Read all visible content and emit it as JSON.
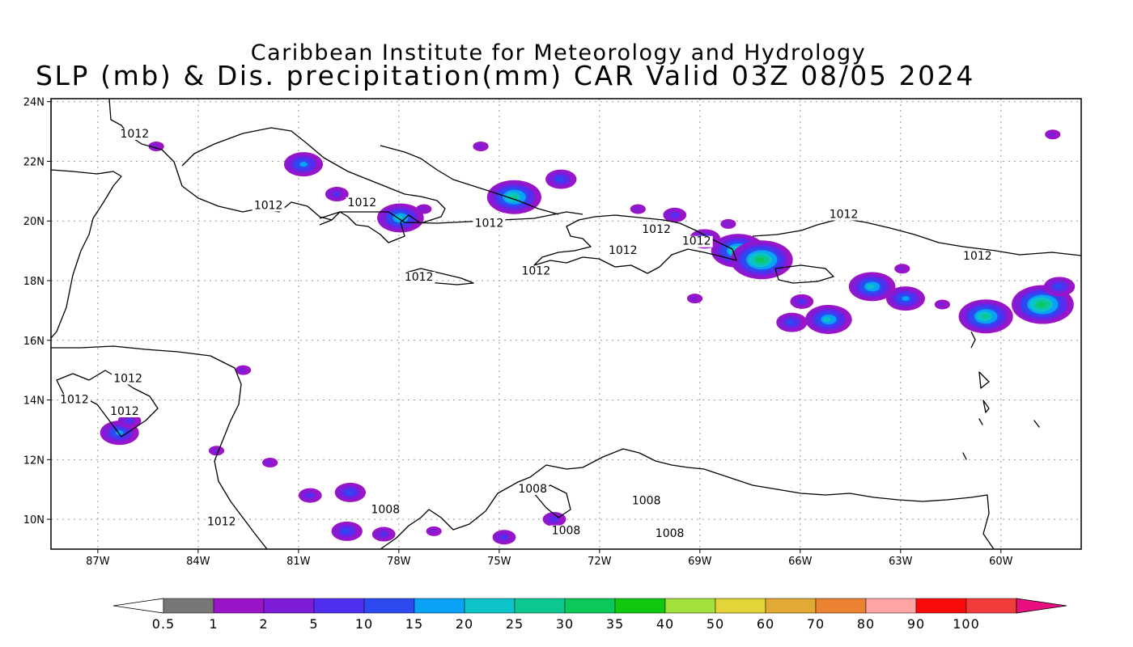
{
  "title": {
    "line1": "Caribbean Institute for Meteorology and Hydrology",
    "line2": "SLP (mb) & Dis. precipitation(mm) CAR Valid 03Z 08/05 2024"
  },
  "axes": {
    "lon_labels": [
      "87W",
      "84W",
      "81W",
      "78W",
      "75W",
      "72W",
      "69W",
      "66W",
      "63W",
      "60W"
    ],
    "lat_labels": [
      "24N",
      "22N",
      "20N",
      "18N",
      "16N",
      "14N",
      "12N",
      "10N"
    ],
    "lon_values": [
      -87,
      -84,
      -81,
      -78,
      -75,
      -72,
      -69,
      -66,
      -63,
      -60
    ],
    "lat_values": [
      24,
      22,
      20,
      18,
      16,
      14,
      12,
      10
    ],
    "lon_range": [
      -88.4,
      -57.6
    ],
    "lat_range": [
      9,
      24.1
    ],
    "grid": true
  },
  "isobars": [
    {
      "label": "1012",
      "lon": -85.9,
      "lat": 22.8
    },
    {
      "label": "1012",
      "lon": -81.9,
      "lat": 20.4
    },
    {
      "label": "1012",
      "lon": -79.1,
      "lat": 20.5
    },
    {
      "label": "1012",
      "lon": -75.3,
      "lat": 19.8
    },
    {
      "label": "1012",
      "lon": -77.4,
      "lat": 18.0
    },
    {
      "label": "1012",
      "lon": -73.9,
      "lat": 18.2
    },
    {
      "label": "1012",
      "lon": -71.3,
      "lat": 18.9
    },
    {
      "label": "1012",
      "lon": -70.3,
      "lat": 19.6
    },
    {
      "label": "1012",
      "lon": -69.1,
      "lat": 19.2
    },
    {
      "label": "1012",
      "lon": -64.7,
      "lat": 20.1
    },
    {
      "label": "1012",
      "lon": -60.7,
      "lat": 18.7
    },
    {
      "label": "1012",
      "lon": -86.1,
      "lat": 14.6
    },
    {
      "label": "1012",
      "lon": -87.7,
      "lat": 13.9
    },
    {
      "label": "1012",
      "lon": -86.2,
      "lat": 13.5
    },
    {
      "label": "1012",
      "lon": -83.3,
      "lat": 9.8
    },
    {
      "label": "1008",
      "lon": -78.4,
      "lat": 10.2
    },
    {
      "label": "1008",
      "lon": -74.0,
      "lat": 10.9
    },
    {
      "label": "1008",
      "lon": -70.6,
      "lat": 10.5
    },
    {
      "label": "1008",
      "lon": -73.0,
      "lat": 9.5
    },
    {
      "label": "1008",
      "lon": -69.9,
      "lat": 9.4
    }
  ],
  "precip_cells": [
    {
      "lon": -80.9,
      "lat": 21.9,
      "level": 5
    },
    {
      "lon": -79.9,
      "lat": 20.9,
      "level": 3
    },
    {
      "lon": -78.0,
      "lat": 20.1,
      "level": 6
    },
    {
      "lon": -74.6,
      "lat": 20.8,
      "level": 7
    },
    {
      "lon": -73.2,
      "lat": 21.4,
      "level": 4
    },
    {
      "lon": -75.6,
      "lat": 22.5,
      "level": 2
    },
    {
      "lon": -67.9,
      "lat": 19.0,
      "level": 7
    },
    {
      "lon": -67.2,
      "lat": 18.7,
      "level": 8
    },
    {
      "lon": -63.9,
      "lat": 17.8,
      "level": 6
    },
    {
      "lon": -62.9,
      "lat": 17.4,
      "level": 5
    },
    {
      "lon": -65.2,
      "lat": 16.7,
      "level": 6
    },
    {
      "lon": -66.3,
      "lat": 16.6,
      "level": 4
    },
    {
      "lon": -60.5,
      "lat": 16.8,
      "level": 7
    },
    {
      "lon": -58.8,
      "lat": 17.2,
      "level": 8
    },
    {
      "lon": -58.3,
      "lat": 17.8,
      "level": 4
    },
    {
      "lon": -86.4,
      "lat": 12.9,
      "level": 5
    },
    {
      "lon": -86.1,
      "lat": 13.3,
      "level": 3
    },
    {
      "lon": -79.6,
      "lat": 9.6,
      "level": 4
    },
    {
      "lon": -80.7,
      "lat": 10.8,
      "level": 3
    },
    {
      "lon": -79.5,
      "lat": 10.9,
      "level": 4
    },
    {
      "lon": -74.9,
      "lat": 9.4,
      "level": 3
    },
    {
      "lon": -73.4,
      "lat": 10.0,
      "level": 3
    },
    {
      "lon": -69.8,
      "lat": 20.2,
      "level": 3
    },
    {
      "lon": -68.9,
      "lat": 19.4,
      "level": 4
    },
    {
      "lon": -68.2,
      "lat": 19.9,
      "level": 2
    },
    {
      "lon": -85.3,
      "lat": 22.5,
      "level": 2
    },
    {
      "lon": -81.9,
      "lat": 11.9,
      "level": 2
    },
    {
      "lon": -83.5,
      "lat": 12.3,
      "level": 2
    },
    {
      "lon": -77.0,
      "lat": 9.6,
      "level": 2
    },
    {
      "lon": -78.5,
      "lat": 9.5,
      "level": 3
    },
    {
      "lon": -61.8,
      "lat": 17.2,
      "level": 2
    },
    {
      "lon": -58.5,
      "lat": 22.9,
      "level": 2
    },
    {
      "lon": -63.0,
      "lat": 18.4,
      "level": 2
    },
    {
      "lon": -66.0,
      "lat": 17.3,
      "level": 3
    },
    {
      "lon": -70.9,
      "lat": 20.4,
      "level": 2
    },
    {
      "lon": -69.2,
      "lat": 17.4,
      "level": 2
    },
    {
      "lon": -82.7,
      "lat": 15.0,
      "level": 2
    },
    {
      "lon": -77.3,
      "lat": 20.4,
      "level": 2
    }
  ],
  "colorbar": {
    "labels": [
      "0.5",
      "1",
      "2",
      "5",
      "10",
      "15",
      "20",
      "25",
      "30",
      "35",
      "40",
      "50",
      "60",
      "70",
      "80",
      "90",
      "100"
    ],
    "colors": [
      "#777777",
      "#9a14c8",
      "#7e1cd8",
      "#5030f0",
      "#2c4af0",
      "#0aa2f5",
      "#0bc3c8",
      "#0ac890",
      "#0ac85a",
      "#10c810",
      "#a2e03c",
      "#e3d43a",
      "#e2aa34",
      "#eb8232",
      "#fea4a4",
      "#fa0a0a",
      "#f23c3c"
    ],
    "under_color": "#ffffff",
    "over_color": "#e8107e"
  }
}
